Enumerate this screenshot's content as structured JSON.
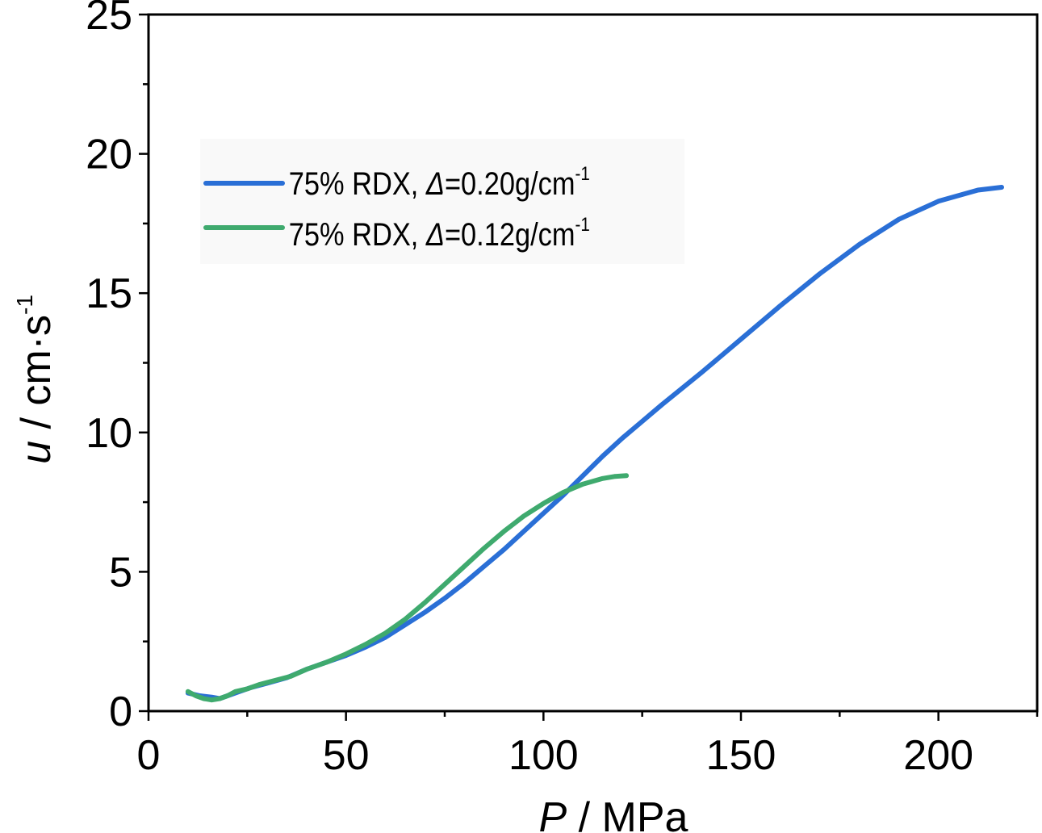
{
  "chart_data": {
    "type": "line",
    "xlabel_var": "P",
    "xlabel_unit": " / MPa",
    "ylabel_var": "u",
    "ylabel_unit": " / cm·s",
    "ylabel_sup": "-1",
    "xlim": [
      0,
      225
    ],
    "ylim": [
      0,
      25
    ],
    "xticks": [
      0,
      50,
      100,
      150,
      200
    ],
    "yticks": [
      0,
      5,
      10,
      15,
      20,
      25
    ],
    "xtick_labels": [
      "0",
      "50",
      "100",
      "150",
      "200"
    ],
    "ytick_labels": [
      "0",
      "5",
      "10",
      "15",
      "20",
      "25"
    ],
    "grid": false,
    "legend_position": "upper-left",
    "series": [
      {
        "name_prefix": "75% RDX, ",
        "name_symbol": "Δ",
        "name_value": "=0.20g/cm",
        "name_sup": "-1",
        "color": "#2a6fd6",
        "x": [
          10,
          13,
          16,
          18,
          20,
          23,
          26,
          30,
          35,
          40,
          45,
          50,
          55,
          60,
          65,
          70,
          75,
          80,
          85,
          90,
          95,
          100,
          105,
          110,
          115,
          120,
          125,
          130,
          140,
          150,
          160,
          170,
          180,
          190,
          200,
          210,
          216
        ],
        "y": [
          0.65,
          0.55,
          0.5,
          0.45,
          0.55,
          0.7,
          0.85,
          1.0,
          1.2,
          1.5,
          1.75,
          2.0,
          2.3,
          2.65,
          3.1,
          3.55,
          4.05,
          4.6,
          5.2,
          5.8,
          6.45,
          7.1,
          7.75,
          8.45,
          9.15,
          9.8,
          10.4,
          11.0,
          12.15,
          13.35,
          14.55,
          15.7,
          16.75,
          17.65,
          18.3,
          18.7,
          18.8
        ]
      },
      {
        "name_prefix": "75% RDX, ",
        "name_symbol": "Δ",
        "name_value": "=0.12g/cm",
        "name_sup": "-1",
        "color": "#3faa6e",
        "x": [
          10,
          12,
          14,
          16,
          18,
          20,
          22,
          25,
          28,
          32,
          36,
          40,
          45,
          50,
          55,
          60,
          65,
          70,
          75,
          80,
          85,
          90,
          95,
          100,
          105,
          110,
          115,
          118,
          121
        ],
        "y": [
          0.7,
          0.55,
          0.45,
          0.4,
          0.45,
          0.55,
          0.7,
          0.8,
          0.95,
          1.1,
          1.25,
          1.5,
          1.75,
          2.05,
          2.4,
          2.8,
          3.3,
          3.9,
          4.55,
          5.2,
          5.85,
          6.45,
          7.0,
          7.45,
          7.85,
          8.15,
          8.35,
          8.42,
          8.45
        ]
      }
    ]
  }
}
